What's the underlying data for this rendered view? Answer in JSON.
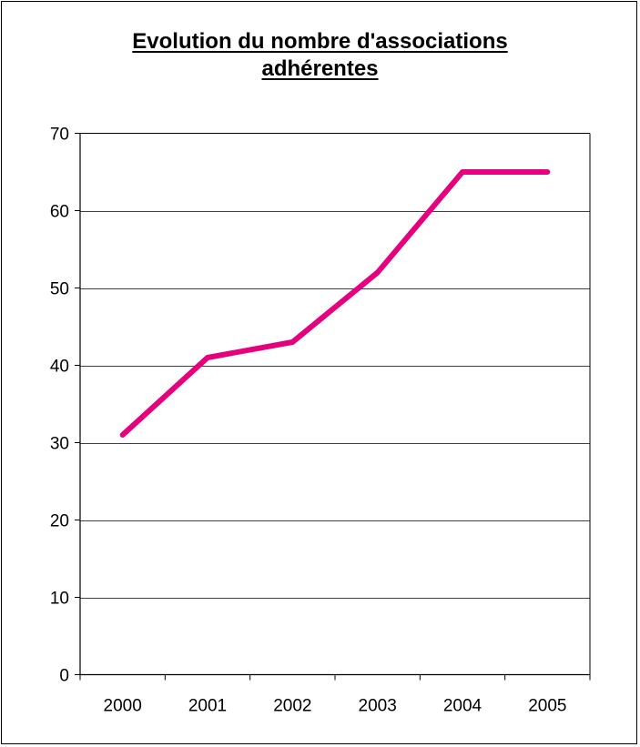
{
  "chart_data": {
    "type": "line",
    "title_line1": "Evolution du nombre d'associations",
    "title_line2": "adhérentes",
    "xlabel": "",
    "ylabel": "",
    "categories": [
      "2000",
      "2001",
      "2002",
      "2003",
      "2004",
      "2005"
    ],
    "series": [
      {
        "values": [
          31,
          41,
          43,
          52,
          65,
          65
        ]
      }
    ],
    "ylim": [
      0,
      70
    ],
    "yticks": [
      0,
      10,
      20,
      30,
      40,
      50,
      60,
      70
    ],
    "grid": true,
    "legend": "none",
    "line_color": "#e5007e",
    "grid_color": "#000000"
  }
}
